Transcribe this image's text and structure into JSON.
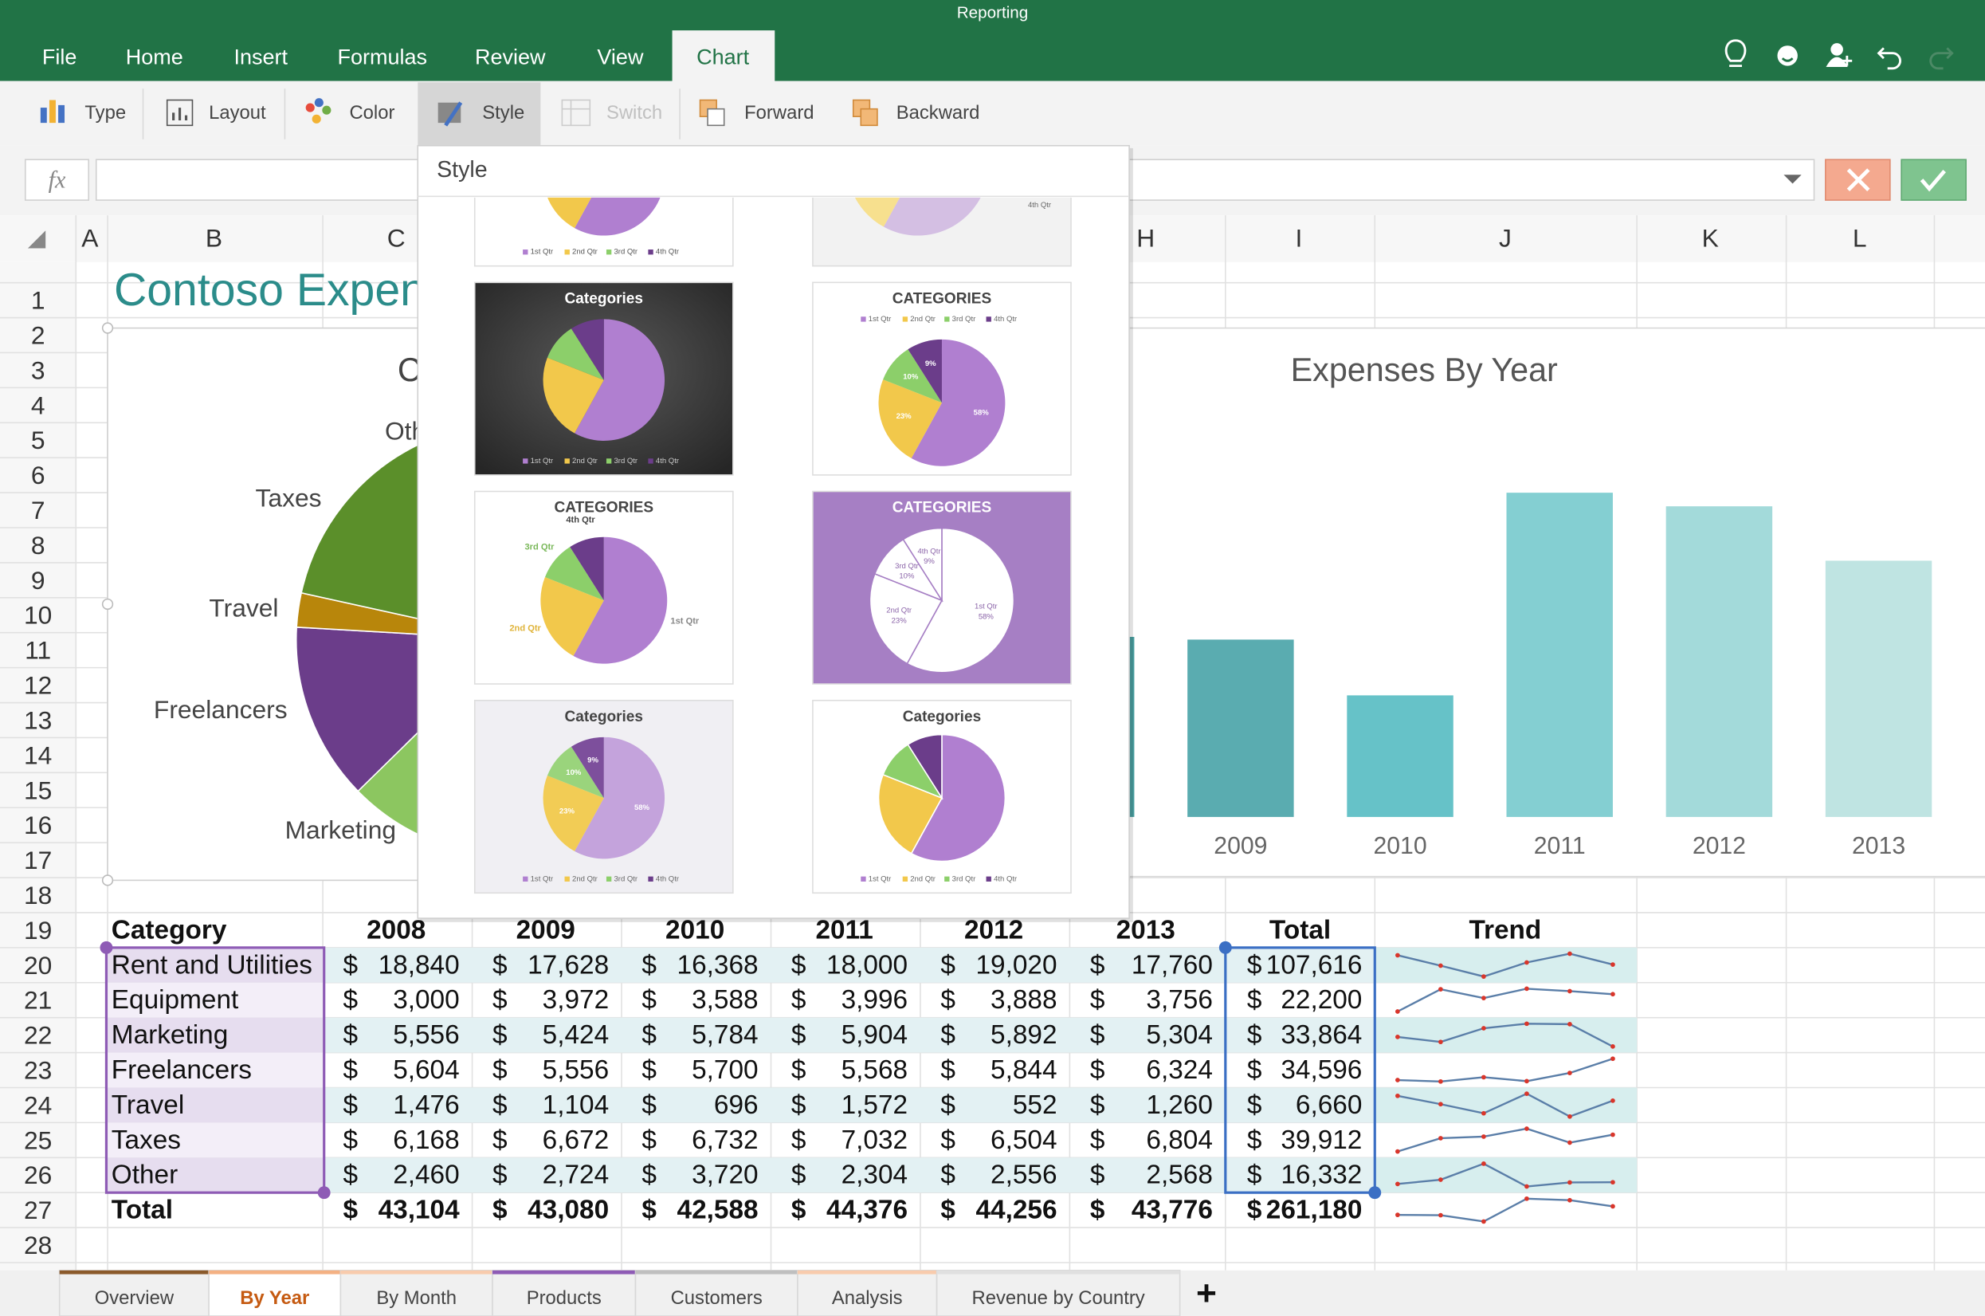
{
  "app": {
    "document_title": "Reporting",
    "tabs": [
      "File",
      "Home",
      "Insert",
      "Formulas",
      "Review",
      "View",
      "Chart"
    ],
    "active_tab": "Chart",
    "ribbon": [
      "Type",
      "Layout",
      "Color",
      "Style",
      "Switch",
      "Forward",
      "Backward"
    ],
    "active_ribbon": "Style",
    "disabled_ribbon": "Switch",
    "formula_label": "fx"
  },
  "sheet": {
    "columns": [
      "A",
      "B",
      "C",
      "H",
      "I",
      "J",
      "K",
      "L"
    ],
    "row_numbers": [
      1,
      2,
      3,
      4,
      5,
      6,
      7,
      8,
      9,
      10,
      11,
      12,
      13,
      14,
      15,
      16,
      17,
      18,
      19,
      20,
      21,
      22,
      23,
      24,
      25,
      26,
      27,
      28
    ],
    "title": "Contoso Expen",
    "pie_chart": {
      "type": "pie",
      "title": "C",
      "colors": [
        "#b07fd0",
        "#f2c84b",
        "#8cc660",
        "#6b3d8a",
        "#b8860b",
        "#5b8f2a",
        "#c9a0dc"
      ]
    },
    "bar_chart": {
      "type": "bar",
      "title": "Expenses By Year",
      "colors": [
        "#4a9fa0",
        "#5aacb0",
        "#66c2c8",
        "#84cfd2",
        "#a3dada",
        "#bfe4e2"
      ]
    },
    "table": {
      "header": [
        "Category",
        "2008",
        "2009",
        "2010",
        "2011",
        "2012",
        "2013",
        "Total",
        "Trend"
      ],
      "currency": "$",
      "rows": [
        {
          "category": "Rent and Utilities",
          "values": [
            18840,
            17628,
            16368,
            18000,
            19020,
            17760
          ],
          "value_labels": [
            "18,840",
            "17,628",
            "16,368",
            "18,000",
            "19,020",
            "17,760"
          ],
          "total": 107616,
          "total_label": "107,616"
        },
        {
          "category": "Equipment",
          "values": [
            3000,
            3972,
            3588,
            3996,
            3888,
            3756
          ],
          "value_labels": [
            "3,000",
            "3,972",
            "3,588",
            "3,996",
            "3,888",
            "3,756"
          ],
          "total": 22200,
          "total_label": "22,200"
        },
        {
          "category": "Marketing",
          "values": [
            5556,
            5424,
            5784,
            5904,
            5892,
            5304
          ],
          "value_labels": [
            "5,556",
            "5,424",
            "5,784",
            "5,904",
            "5,892",
            "5,304"
          ],
          "total": 33864,
          "total_label": "33,864"
        },
        {
          "category": "Freelancers",
          "values": [
            5604,
            5556,
            5700,
            5568,
            5844,
            6324
          ],
          "value_labels": [
            "5,604",
            "5,556",
            "5,700",
            "5,568",
            "5,844",
            "6,324"
          ],
          "total": 34596,
          "total_label": "34,596"
        },
        {
          "category": "Travel",
          "values": [
            1476,
            1104,
            696,
            1572,
            552,
            1260
          ],
          "value_labels": [
            "1,476",
            "1,104",
            "696",
            "1,572",
            "552",
            "1,260"
          ],
          "total": 6660,
          "total_label": "6,660"
        },
        {
          "category": "Taxes",
          "values": [
            6168,
            6672,
            6732,
            7032,
            6504,
            6804
          ],
          "value_labels": [
            "6,168",
            "6,672",
            "6,732",
            "7,032",
            "6,504",
            "6,804"
          ],
          "total": 39912,
          "total_label": "39,912"
        },
        {
          "category": "Other",
          "values": [
            2460,
            2724,
            3720,
            2304,
            2556,
            2568
          ],
          "value_labels": [
            "2,460",
            "2,724",
            "3,720",
            "2,304",
            "2,556",
            "2,568"
          ],
          "total": 16332,
          "total_label": "16,332"
        }
      ],
      "total_row": {
        "category": "Total",
        "values": [
          43104,
          43080,
          42588,
          44376,
          44256,
          43776
        ],
        "value_labels": [
          "43,104",
          "43,080",
          "42,588",
          "44,376",
          "44,256",
          "43,776"
        ],
        "total": 261180,
        "total_label": "261,180"
      }
    }
  },
  "style_gallery": {
    "title": "Style",
    "legend": [
      "1st Qtr",
      "2nd Qtr",
      "3rd Qtr",
      "4th Qtr"
    ],
    "shares": [
      58,
      23,
      10,
      9
    ],
    "share_labels": [
      "58%",
      "23%",
      "10%",
      "9%"
    ],
    "colors": [
      "#b07fd0",
      "#f2c84b",
      "#8ccf6a",
      "#6b3d8a"
    ],
    "thumbnails": [
      {
        "title": "Categories"
      },
      {
        "title": "CATEGORIES"
      },
      {
        "title": "CATEGORIES"
      },
      {
        "title": "CATEGORIES"
      },
      {
        "title": "Categories"
      },
      {
        "title": "Categories"
      }
    ]
  },
  "sheet_tabs": [
    "Overview",
    "By Year",
    "By Month",
    "Products",
    "Customers",
    "Analysis",
    "Revenue by Country"
  ],
  "active_sheet": "By Year"
}
